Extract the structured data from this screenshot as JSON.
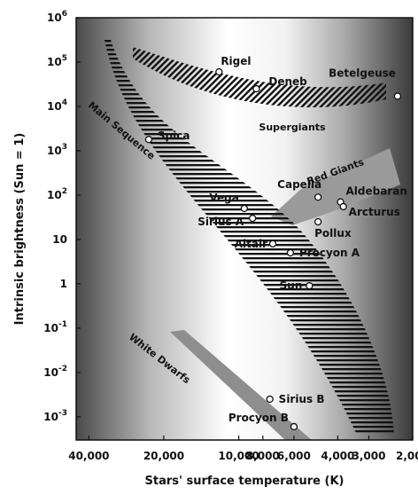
{
  "chart_data": {
    "type": "scatter",
    "xlabel": "Stars' surface temperature (K)",
    "ylabel": "Intrinsic brightness (Sun = 1)",
    "x_scale": "log",
    "x_reversed": true,
    "y_scale": "log",
    "xlim": [
      45000,
      2000
    ],
    "ylim": [
      0.0003,
      1000000
    ],
    "x_ticks": [
      {
        "value": 40000,
        "label": "40,000"
      },
      {
        "value": 20000,
        "label": "20,000"
      },
      {
        "value": 10000,
        "label": "10,000"
      },
      {
        "value": 8000,
        "label": "8,000"
      },
      {
        "value": 6000,
        "label": "6,000"
      },
      {
        "value": 4000,
        "label": "4,000"
      },
      {
        "value": 3000,
        "label": "3,000"
      },
      {
        "value": 2000,
        "label": "2,000"
      }
    ],
    "y_ticks": [
      {
        "value": 1000000,
        "base": "10",
        "exp": "6"
      },
      {
        "value": 100000,
        "base": "10",
        "exp": "5"
      },
      {
        "value": 10000,
        "base": "10",
        "exp": "4"
      },
      {
        "value": 1000,
        "base": "10",
        "exp": "3"
      },
      {
        "value": 100,
        "base": "10",
        "exp": "2"
      },
      {
        "value": 10,
        "base": "10",
        "exp": ""
      },
      {
        "value": 1,
        "base": "1",
        "exp": ""
      },
      {
        "value": 0.1,
        "base": "10",
        "exp": "-1"
      },
      {
        "value": 0.01,
        "base": "10",
        "exp": "-2"
      },
      {
        "value": 0.001,
        "base": "10",
        "exp": "-3"
      }
    ],
    "stars": [
      {
        "name": "Rigel",
        "temperature": 12000,
        "brightness": 60000
      },
      {
        "name": "Deneb",
        "temperature": 8500,
        "brightness": 25000
      },
      {
        "name": "Betelgeuse",
        "temperature": 2300,
        "brightness": 17000
      },
      {
        "name": "Spica",
        "temperature": 23000,
        "brightness": 1800
      },
      {
        "name": "Capella",
        "temperature": 4800,
        "brightness": 90
      },
      {
        "name": "Aldebaran",
        "temperature": 3900,
        "brightness": 70
      },
      {
        "name": "Arcturus",
        "temperature": 3800,
        "brightness": 55
      },
      {
        "name": "Vega",
        "temperature": 9500,
        "brightness": 50
      },
      {
        "name": "Sirius A",
        "temperature": 8800,
        "brightness": 30
      },
      {
        "name": "Pollux",
        "temperature": 4800,
        "brightness": 25
      },
      {
        "name": "Altair",
        "temperature": 7300,
        "brightness": 8
      },
      {
        "name": "Procyon A",
        "temperature": 6200,
        "brightness": 5
      },
      {
        "name": "Sun",
        "temperature": 5200,
        "brightness": 0.9
      },
      {
        "name": "Sirius B",
        "temperature": 7500,
        "brightness": 0.0025
      },
      {
        "name": "Procyon B",
        "temperature": 6000,
        "brightness": 0.0006
      }
    ],
    "regions": [
      {
        "name": "Main Sequence"
      },
      {
        "name": "Supergiants"
      },
      {
        "name": "Red Giants"
      },
      {
        "name": "White Dwarfs"
      }
    ]
  }
}
